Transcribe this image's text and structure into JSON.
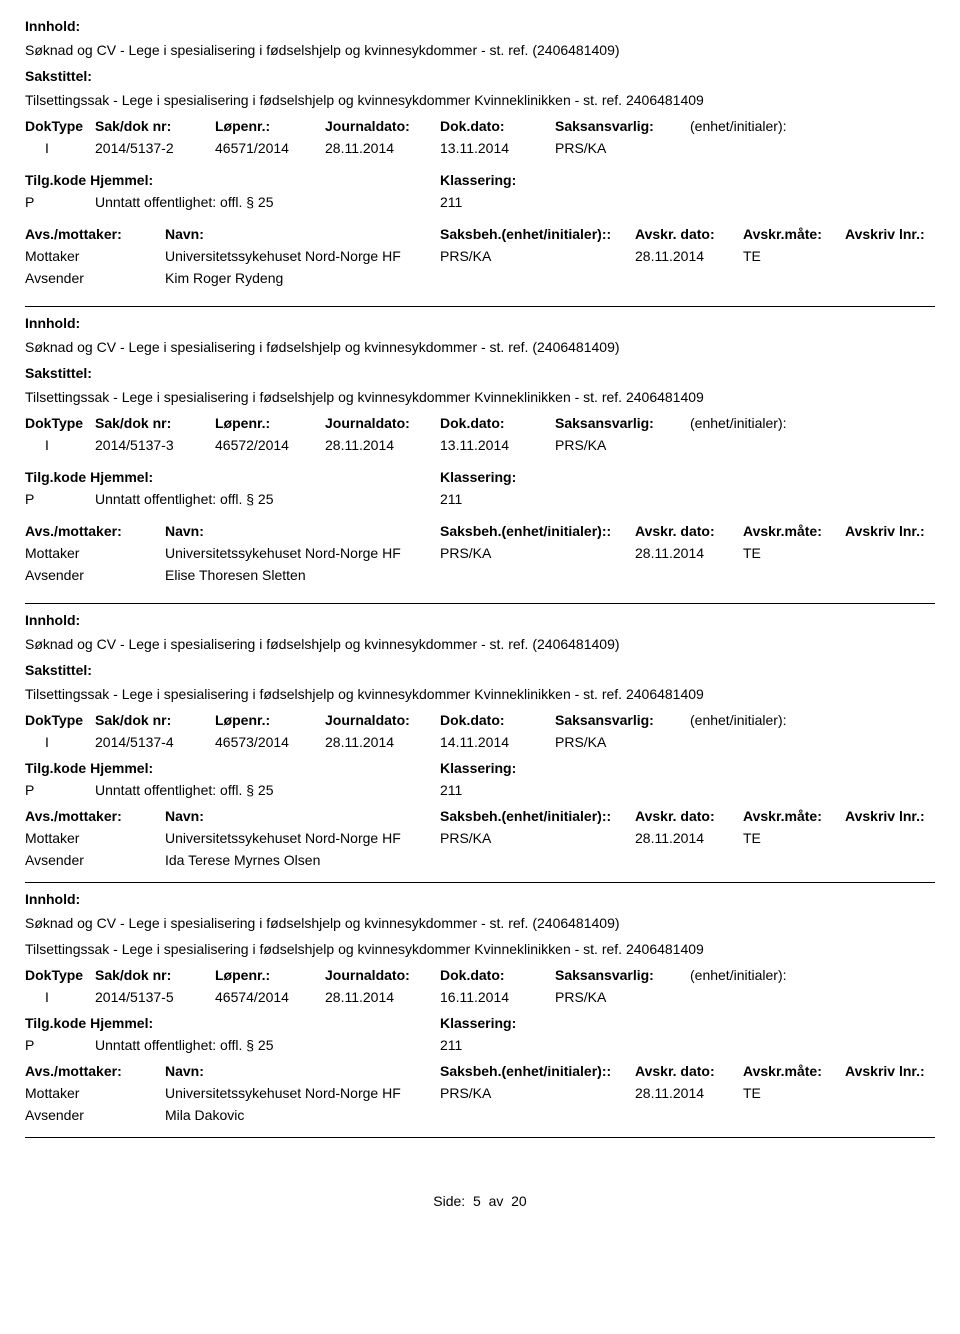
{
  "labels": {
    "innhold": "Innhold:",
    "sakstittel": "Sakstittel:",
    "doktype": "DokType",
    "sakdoknr": "Sak/dok nr:",
    "lopenr": "Løpenr.:",
    "journaldato": "Journaldato:",
    "dokdato": "Dok.dato:",
    "saksansvarlig": "Saksansvarlig:",
    "enhet_initialer": "(enhet/initialer):",
    "tilgkode": "Tilg.kode",
    "hjemmel": "Hjemmel:",
    "klassering": "Klassering:",
    "avsmottaker": "Avs./mottaker:",
    "navn": "Navn:",
    "saksbeh": "Saksbeh.",
    "enhet_initialer2": "(enhet/initialer):",
    "avskr_dato": "Avskr. dato:",
    "avskr_mate": "Avskr.måte:",
    "avskriv_lnr": "Avskriv lnr.:",
    "mottaker": "Mottaker",
    "avsender": "Avsender"
  },
  "common": {
    "innhold_text": "Søknad og CV - Lege i spesialisering i fødselshjelp og kvinnesykdommer - st. ref. (2406481409)",
    "sakstittel_text": "Tilsettingssak - Lege i spesialisering i fødselshjelp og kvinnesykdommer Kvinneklinikken - st. ref. 2406481409",
    "mottaker_navn": "Universitetssykehuset Nord-Norge HF",
    "saksbeh": "PRS/KA",
    "tilg": "P",
    "hjemmel": "Unntatt offentlighet: offl. § 25",
    "klass": "211",
    "doktype": "I",
    "journaldato": "28.11.2014",
    "saksansvarlig": "PRS/KA",
    "avskr_dato": "28.11.2014",
    "avskr_mate": "TE"
  },
  "records": [
    {
      "sakdoknr": "2014/5137-2",
      "lopenr": "46571/2014",
      "dokdato": "13.11.2014",
      "avsender": "Kim Roger Rydeng"
    },
    {
      "sakdoknr": "2014/5137-3",
      "lopenr": "46572/2014",
      "dokdato": "13.11.2014",
      "avsender": "Elise Thoresen Sletten"
    },
    {
      "sakdoknr": "2014/5137-4",
      "lopenr": "46573/2014",
      "dokdato": "14.11.2014",
      "avsender": "Ida Terese Myrnes Olsen"
    },
    {
      "sakdoknr": "2014/5137-5",
      "lopenr": "46574/2014",
      "dokdato": "16.11.2014",
      "avsender": "Mila Dakovic"
    }
  ],
  "footer": {
    "side": "Side:",
    "page": "5",
    "av": "av",
    "total": "20"
  }
}
